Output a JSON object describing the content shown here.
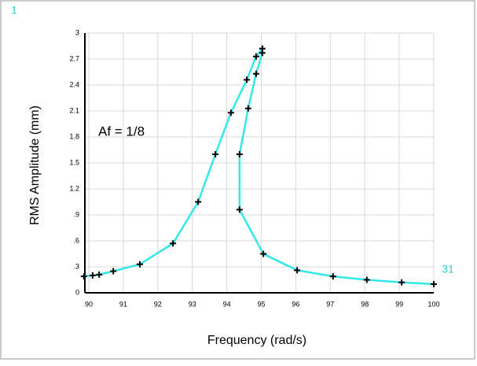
{
  "chart_data": {
    "type": "line",
    "x_label": "Frequency (rad/s)",
    "y_label": "RMS Amplitude (mm)",
    "annotations": [
      "1",
      "31",
      "Af = 1/8"
    ],
    "series": [
      {
        "color": "#33e8e8",
        "x": [
          89.86,
          90.11,
          90.3,
          90.71,
          91.48,
          92.44,
          93.17,
          93.67,
          94.12,
          94.58,
          94.85,
          95.03,
          95.03,
          94.85,
          94.62,
          94.37,
          94.37,
          95.06,
          96.04,
          97.08,
          98.06,
          99.07,
          100
        ],
        "values": [
          0.19,
          0.2,
          0.21,
          0.25,
          0.33,
          0.57,
          1.05,
          1.6,
          2.08,
          2.46,
          2.73,
          2.82,
          2.77,
          2.53,
          2.13,
          1.6,
          0.96,
          0.45,
          0.26,
          0.19,
          0.15,
          0.12,
          0.1
        ]
      }
    ],
    "xlim": [
      90,
      100
    ],
    "xticks": [
      90,
      91,
      92,
      93,
      94,
      95,
      96,
      97,
      98,
      99,
      100
    ],
    "ylim": [
      0,
      3
    ],
    "yticks": [
      0,
      {
        "value": 0.3,
        "label": ".3"
      },
      {
        "value": 0.6,
        "label": ".6"
      },
      {
        "value": 0.9,
        "label": ".9"
      },
      1.2,
      1.5,
      1.8,
      2.1,
      2.4,
      2.7,
      3
    ],
    "grid": true
  }
}
